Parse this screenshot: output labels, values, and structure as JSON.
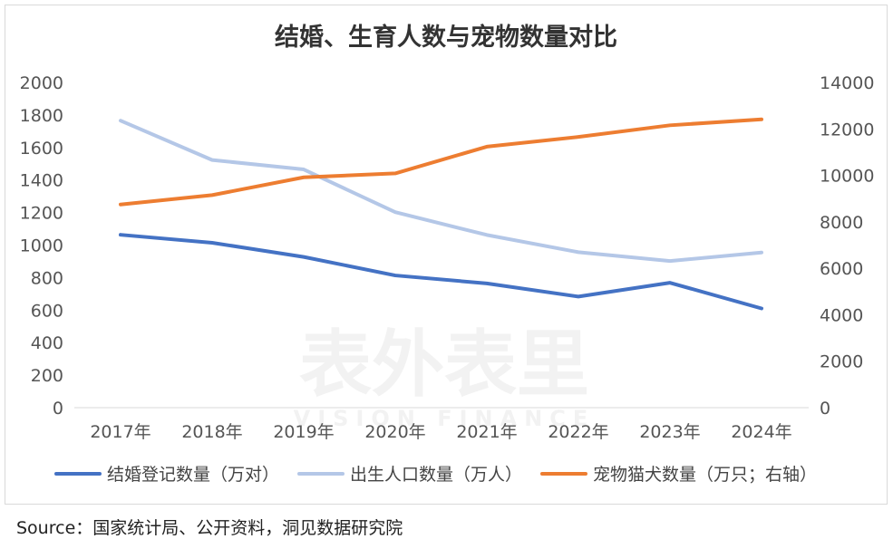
{
  "chart_data": {
    "type": "line",
    "title": "结婚、生育人数与宠物数量对比",
    "categories": [
      "2017年",
      "2018年",
      "2019年",
      "2020年",
      "2021年",
      "2022年",
      "2023年",
      "2024年"
    ],
    "y_left": {
      "range": [
        0,
        2000
      ],
      "ticks": [
        "0",
        "200",
        "400",
        "600",
        "800",
        "1000",
        "1200",
        "1400",
        "1600",
        "1800",
        "2000"
      ]
    },
    "y_right": {
      "range": [
        0,
        14000
      ],
      "ticks": [
        "0",
        "2000",
        "4000",
        "6000",
        "8000",
        "10000",
        "12000",
        "14000"
      ]
    },
    "grid": false,
    "legend_position": "bottom",
    "series": [
      {
        "name": "结婚登记数量（万对）",
        "axis": "left",
        "color": "#4472c4",
        "values": [
          1063,
          1014,
          927,
          813,
          764,
          683,
          768,
          610
        ]
      },
      {
        "name": "出生人口数量（万人）",
        "axis": "left",
        "color": "#b4c7e7",
        "values": [
          1765,
          1523,
          1465,
          1202,
          1062,
          956,
          902,
          954
        ]
      },
      {
        "name": "宠物猫犬数量（万只；右轴）",
        "axis": "right",
        "color": "#ed7d31",
        "values": [
          8746,
          9149,
          9915,
          10084,
          11235,
          11655,
          12155,
          12411
        ]
      }
    ]
  },
  "watermark": {
    "text": "表外表里",
    "subtext": "VISION FINANCE"
  },
  "source": "Source：国家统计局、公开资料，洞见数据研究院"
}
